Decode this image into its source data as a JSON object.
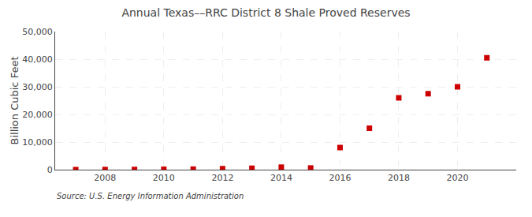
{
  "chart_data": {
    "type": "scatter",
    "title": "Annual Texas––RRC District 8 Shale Proved Reserves",
    "ylabel": "Billion Cubic Feet",
    "annotations": [
      "Source: U.S. Energy Information Administration"
    ],
    "x": [
      2007,
      2008,
      2009,
      2010,
      2011,
      2012,
      2013,
      2014,
      2015,
      2016,
      2017,
      2018,
      2019,
      2020,
      2021
    ],
    "values": [
      5,
      30,
      60,
      120,
      180,
      350,
      500,
      900,
      600,
      8000,
      15000,
      26000,
      27500,
      30000,
      40500
    ],
    "color": "#cc0000",
    "marker": "square",
    "xlim": [
      2006.3,
      2022.0
    ],
    "xticks": [
      2008,
      2010,
      2012,
      2014,
      2016,
      2018,
      2020
    ],
    "ylim": [
      0,
      50000
    ],
    "yticks": [
      0,
      {
        "value": 10000,
        "label": "10,000"
      },
      {
        "value": 20000,
        "label": "20,000"
      },
      {
        "value": 30000,
        "label": "30,000"
      },
      {
        "value": 40000,
        "label": "40,000"
      },
      {
        "value": 50000,
        "label": "50,000"
      }
    ],
    "grid": true
  }
}
